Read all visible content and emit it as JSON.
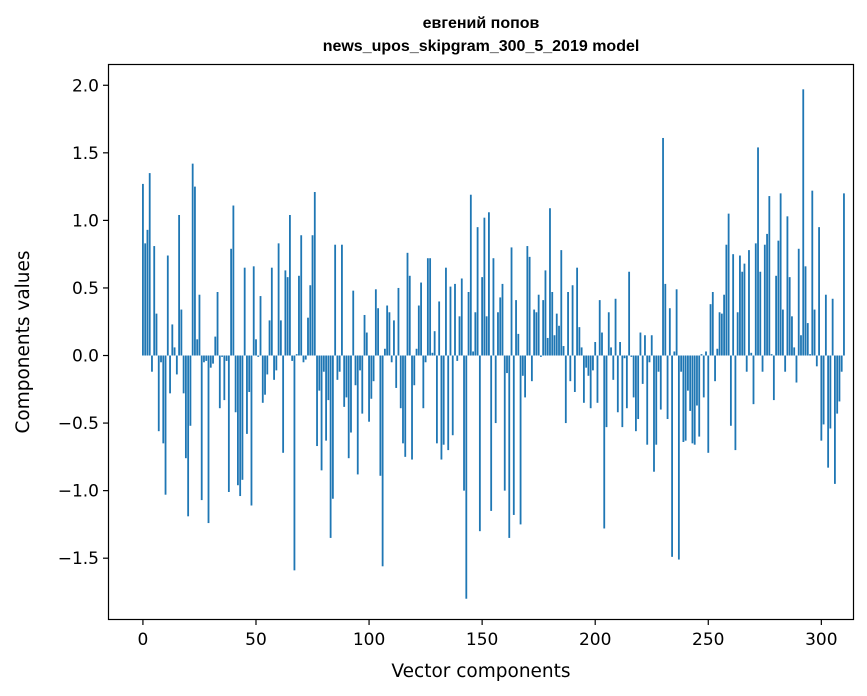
{
  "chart_data": {
    "type": "bar",
    "title_line1": "евгений попов",
    "title_line2": "news_upos_skipgram_300_5_2019 model",
    "xlabel": "Vector components",
    "ylabel": "Components values",
    "xlim": [
      -15,
      314
    ],
    "ylim": [
      -1.95,
      2.15
    ],
    "xticks": [
      0,
      50,
      100,
      150,
      200,
      250,
      300
    ],
    "yticks": [
      -1.5,
      -1.0,
      -0.5,
      0.0,
      0.5,
      1.0,
      1.5,
      2.0
    ],
    "ytick_labels": [
      "−1.5",
      "−1.0",
      "−0.5",
      "0.0",
      "0.5",
      "1.0",
      "1.5",
      "2.0"
    ],
    "bar_color": "#1f77b4",
    "values": [
      1.27,
      0.83,
      0.93,
      1.35,
      -0.12,
      0.81,
      0.31,
      -0.56,
      -0.05,
      -0.65,
      -1.03,
      0.74,
      -0.28,
      0.23,
      0.06,
      -0.14,
      1.04,
      0.34,
      -0.28,
      -0.76,
      -1.19,
      -0.52,
      1.42,
      1.25,
      0.12,
      0.45,
      -1.07,
      -0.05,
      -0.04,
      -1.24,
      -0.09,
      -0.06,
      0.14,
      0.47,
      -0.39,
      -0.01,
      -0.33,
      -0.04,
      -1.01,
      0.79,
      1.11,
      -0.42,
      -0.96,
      -1.04,
      -0.92,
      0.65,
      -0.58,
      -0.27,
      -1.11,
      0.66,
      0.12,
      -0.01,
      0.44,
      -0.35,
      -0.29,
      -0.14,
      0.26,
      0.65,
      -0.18,
      -0.11,
      0.83,
      0.26,
      -0.72,
      0.63,
      0.58,
      1.04,
      -0.04,
      -1.59,
      0.01,
      0.59,
      0.89,
      -0.05,
      -0.03,
      0.28,
      0.52,
      0.89,
      1.21,
      -0.67,
      -0.26,
      -0.85,
      -0.12,
      -0.63,
      -0.33,
      -1.35,
      -1.06,
      0.82,
      -0.18,
      -0.12,
      0.82,
      -0.38,
      -0.31,
      -0.76,
      -0.57,
      0.48,
      -0.22,
      -0.88,
      -0.11,
      -0.43,
      0.3,
      0.17,
      -0.49,
      -0.32,
      -0.19,
      0.49,
      0.35,
      -0.89,
      -1.56,
      0.05,
      0.37,
      0.32,
      -0.05,
      0.26,
      -0.24,
      0.5,
      -0.39,
      -0.65,
      -0.75,
      0.76,
      0.59,
      -0.77,
      -0.22,
      0.05,
      0.37,
      0.54,
      -0.39,
      -0.05,
      0.72,
      0.72,
      0.02,
      0.18,
      -0.65,
      0.4,
      -0.77,
      -0.66,
      0.65,
      -0.7,
      0.51,
      -0.59,
      0.53,
      -0.04,
      0.29,
      0.57,
      -1.0,
      -1.8,
      0.47,
      1.19,
      0.03,
      0.32,
      0.95,
      -1.3,
      0.58,
      1.02,
      0.29,
      1.06,
      -1.15,
      0.72,
      -0.5,
      0.32,
      0.43,
      0.53,
      -1.0,
      -0.13,
      -1.35,
      0.8,
      -1.18,
      0.41,
      0.16,
      -1.25,
      -0.15,
      -0.31,
      0.81,
      0.73,
      -0.19,
      0.34,
      0.32,
      0.45,
      -0.01,
      0.41,
      0.63,
      0.13,
      1.09,
      0.47,
      0.15,
      0.31,
      0.22,
      0.78,
      0.07,
      -0.5,
      0.47,
      -0.19,
      0.52,
      -0.27,
      0.65,
      0.21,
      0.06,
      -0.35,
      -0.09,
      -0.15,
      -0.39,
      -0.11,
      0.1,
      -0.35,
      0.41,
      0.17,
      -1.28,
      -0.53,
      0.32,
      0.06,
      -0.18,
      0.42,
      -0.42,
      0.1,
      -0.53,
      -0.02,
      -0.39,
      0.62,
      -0.01,
      -0.31,
      -0.56,
      -0.47,
      0.17,
      -0.21,
      0.15,
      -0.66,
      -0.05,
      0.15,
      -0.86,
      -0.66,
      -0.12,
      -0.4,
      1.61,
      0.53,
      -0.47,
      0.35,
      -1.49,
      0.03,
      0.49,
      -1.51,
      -0.12,
      -0.64,
      -0.63,
      -0.26,
      -0.41,
      -0.65,
      -0.66,
      -0.37,
      -0.6,
      0.01,
      -0.31,
      0.03,
      -0.72,
      0.38,
      0.47,
      -0.19,
      0.05,
      0.32,
      0.31,
      0.45,
      0.82,
      1.05,
      -0.52,
      0.75,
      -0.7,
      0.32,
      0.74,
      0.62,
      0.68,
      -0.12,
      0.78,
      0.02,
      -0.36,
      0.83,
      1.54,
      0.62,
      -0.12,
      0.82,
      0.9,
      1.18,
      0.01,
      -0.33,
      0.59,
      0.85,
      1.2,
      0.34,
      -0.12,
      1.03,
      0.58,
      0.29,
      0.06,
      -0.2,
      0.79,
      0.15,
      1.97,
      0.66,
      0.24,
      0.01,
      1.22,
      0.34,
      -0.08,
      0.95,
      -0.63,
      -0.51,
      0.45,
      -0.83,
      -0.54,
      0.42,
      -0.95,
      -0.43,
      -0.34,
      -0.12,
      1.2
    ]
  }
}
